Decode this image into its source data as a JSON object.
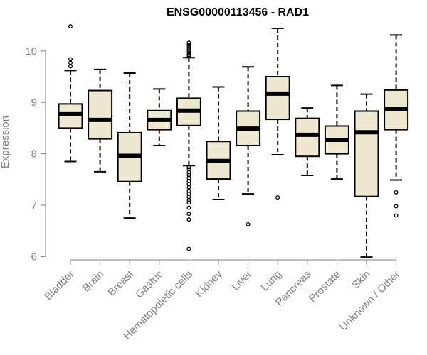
{
  "chart_data": {
    "type": "boxplot",
    "title": "ENSG00000113456 - RAD1",
    "xlabel": "",
    "ylabel": "Expression",
    "ylim": [
      5.95,
      10.55
    ],
    "yticks": [
      6,
      7,
      8,
      9,
      10
    ],
    "grid": false,
    "colors": {
      "box_fill": "#efe8d0",
      "stroke": "#000000",
      "axis": "#808080",
      "tick_label": "#808080"
    },
    "categories": [
      "Bladder",
      "Brain",
      "Breast",
      "Gastric",
      "Hematopoietic cells",
      "Kidney",
      "Liver",
      "Lung",
      "Pancreas",
      "Prostate",
      "Skin",
      "Unknown / Other"
    ],
    "boxes": [
      {
        "category": "Bladder",
        "whisker_low": 7.85,
        "q1": 8.5,
        "median": 8.77,
        "q3": 8.97,
        "whisker_high": 9.62,
        "outliers": [
          10.48,
          9.84,
          9.77,
          9.7
        ]
      },
      {
        "category": "Brain",
        "whisker_low": 7.65,
        "q1": 8.29,
        "median": 8.66,
        "q3": 9.23,
        "whisker_high": 9.64,
        "outliers": []
      },
      {
        "category": "Breast",
        "whisker_low": 6.75,
        "q1": 7.46,
        "median": 7.96,
        "q3": 8.41,
        "whisker_high": 9.57,
        "outliers": []
      },
      {
        "category": "Gastric",
        "whisker_low": 8.16,
        "q1": 8.47,
        "median": 8.66,
        "q3": 8.84,
        "whisker_high": 9.26,
        "outliers": []
      },
      {
        "category": "Hematopoietic cells",
        "whisker_low": 7.77,
        "q1": 8.55,
        "median": 8.84,
        "q3": 9.08,
        "whisker_high": 9.87,
        "outliers": [
          10.16,
          10.12,
          10.08,
          10.04,
          10.0,
          9.96,
          9.92,
          9.89,
          7.74,
          7.7,
          7.64,
          7.59,
          7.53,
          7.47,
          7.41,
          7.35,
          7.28,
          7.22,
          7.16,
          7.1,
          7.05,
          6.95,
          6.83,
          6.72,
          6.15
        ]
      },
      {
        "category": "Kidney",
        "whisker_low": 7.11,
        "q1": 7.51,
        "median": 7.86,
        "q3": 8.24,
        "whisker_high": 9.3,
        "outliers": []
      },
      {
        "category": "Liver",
        "whisker_low": 7.22,
        "q1": 8.16,
        "median": 8.49,
        "q3": 8.83,
        "whisker_high": 9.69,
        "outliers": [
          6.63
        ]
      },
      {
        "category": "Lung",
        "whisker_low": 7.98,
        "q1": 8.67,
        "median": 9.17,
        "q3": 9.5,
        "whisker_high": 10.44,
        "outliers": [
          7.15
        ]
      },
      {
        "category": "Pancreas",
        "whisker_low": 7.58,
        "q1": 7.95,
        "median": 8.37,
        "q3": 8.69,
        "whisker_high": 8.89,
        "outliers": []
      },
      {
        "category": "Prostate",
        "whisker_low": 7.51,
        "q1": 8.0,
        "median": 8.27,
        "q3": 8.54,
        "whisker_high": 9.33,
        "outliers": []
      },
      {
        "category": "Skin",
        "whisker_low": 5.99,
        "q1": 7.17,
        "median": 8.42,
        "q3": 8.83,
        "whisker_high": 9.16,
        "outliers": []
      },
      {
        "category": "Unknown / Other",
        "whisker_low": 7.49,
        "q1": 8.47,
        "median": 8.87,
        "q3": 9.24,
        "whisker_high": 10.31,
        "outliers": [
          7.25,
          6.98,
          6.8
        ]
      }
    ]
  }
}
